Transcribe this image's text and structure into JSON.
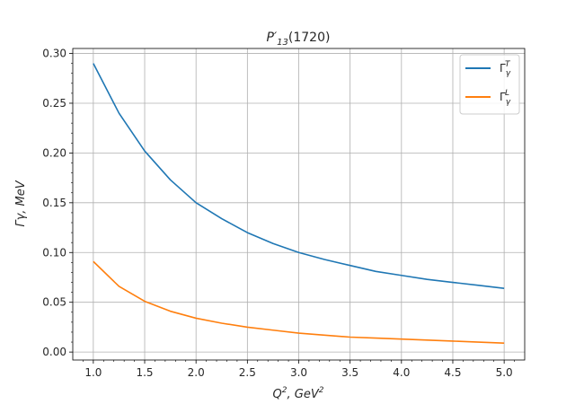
{
  "chart_data": {
    "type": "line",
    "title_main": "P′",
    "title_sub": "13",
    "title_rest": "(1720)",
    "xlabel_main": "Q",
    "xlabel_sup": "2",
    "xlabel_mid": ", GeV",
    "xlabel_sup2": "2",
    "ylabel": "Γγ, MeV",
    "xlim": [
      0.8,
      5.2
    ],
    "ylim": [
      -0.008,
      0.305
    ],
    "xticks": [
      "1.0",
      "1.5",
      "2.0",
      "2.5",
      "3.0",
      "3.5",
      "4.0",
      "4.5",
      "5.0"
    ],
    "yticks": [
      "0.00",
      "0.05",
      "0.10",
      "0.15",
      "0.20",
      "0.25",
      "0.30"
    ],
    "grid": true,
    "legend_position": "top-right",
    "x": [
      1.0,
      1.25,
      1.5,
      1.75,
      2.0,
      2.25,
      2.5,
      2.75,
      3.0,
      3.25,
      3.5,
      3.75,
      4.0,
      4.25,
      4.5,
      4.75,
      5.0
    ],
    "series": [
      {
        "name": "Γ",
        "name_sub": "γ",
        "name_sup": "T",
        "color": "#1f77b4",
        "values": [
          0.29,
          0.24,
          0.202,
          0.173,
          0.15,
          0.134,
          0.12,
          0.109,
          0.1,
          0.093,
          0.087,
          0.081,
          0.077,
          0.073,
          0.07,
          0.067,
          0.064
        ]
      },
      {
        "name": "Γ",
        "name_sub": "γ",
        "name_sup": "L",
        "color": "#ff7f0e",
        "values": [
          0.091,
          0.066,
          0.051,
          0.041,
          0.034,
          0.029,
          0.025,
          0.022,
          0.019,
          0.017,
          0.015,
          0.014,
          0.013,
          0.012,
          0.011,
          0.01,
          0.009
        ]
      }
    ]
  }
}
